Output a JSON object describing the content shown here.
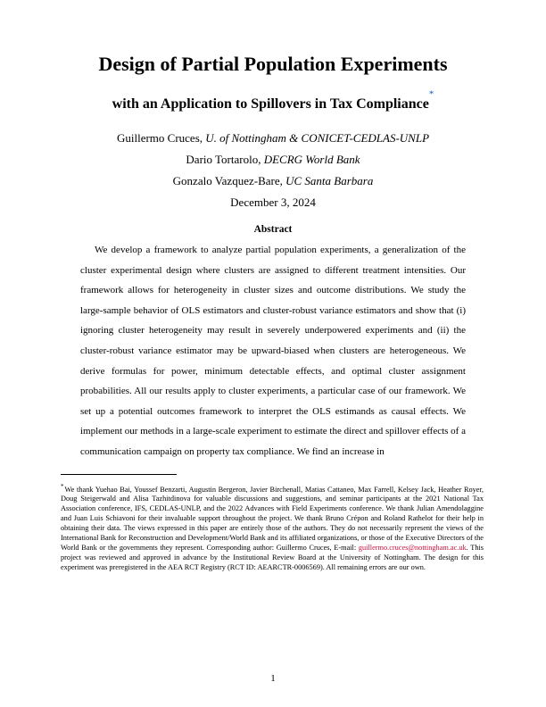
{
  "title": "Design of Partial Population Experiments",
  "subtitle": "with an Application to Spillovers in Tax Compliance",
  "footnote_marker": "*",
  "authors": [
    {
      "name": "Guillermo Cruces",
      "affil": "U. of Nottingham & CONICET-CEDLAS-UNLP"
    },
    {
      "name": "Dario Tortarolo",
      "affil": "DECRG World Bank"
    },
    {
      "name": "Gonzalo Vazquez-Bare",
      "affil": "UC Santa Barbara"
    }
  ],
  "date": "December 3, 2024",
  "abstract_heading": "Abstract",
  "abstract": "We develop a framework to analyze partial population experiments, a generalization of the cluster experimental design where clusters are assigned to different treatment intensities. Our framework allows for heterogeneity in cluster sizes and outcome distributions. We study the large-sample behavior of OLS estimators and cluster-robust variance estimators and show that (i) ignoring cluster heterogeneity may result in severely underpowered experiments and (ii) the cluster-robust variance estimator may be upward-biased when clusters are heterogeneous. We derive formulas for power, minimum detectable effects, and optimal cluster assignment probabilities. All our results apply to cluster experiments, a particular case of our framework. We set up a potential outcomes framework to interpret the OLS estimands as causal effects. We implement our methods in a large-scale experiment to estimate the direct and spillover effects of a communication campaign on property tax compliance. We find an increase in",
  "footnote": {
    "marker": "*",
    "pre_email": "We thank Yuehao Bai, Youssef Benzarti, Augustin Bergeron, Javier Birchenall, Matias Cattaneo, Max Farrell, Kelsey Jack, Heather Royer, Doug Steigerwald and Alisa Tazhitdinova for valuable discussions and suggestions, and seminar participants at the 2021 National Tax Association conference, IFS, CEDLAS-UNLP, and the 2022 Advances with Field Experiments conference. We thank Julian Amendolaggine and Juan Luis Schiavoni for their invaluable support throughout the project. We thank Bruno Crépon and Roland Rathelot for their help in obtaining their data. The views expressed in this paper are entirely those of the authors. They do not necessarily represent the views of the International Bank for Reconstruction and Development/World Bank and its affiliated organizations, or those of the Executive Directors of the World Bank or the governments they represent. Corresponding author: Guillermo Cruces, E-mail: ",
    "email": "guillermo.cruces@nottingham.ac.uk",
    "post_email": ". This project was reviewed and approved in advance by the Institutional Review Board at the University of Nottingham. The design for this experiment was preregistered in the AEA RCT Registry (RCT ID: AEARCTR-0006569). All remaining errors are our own."
  },
  "page_number": "1",
  "colors": {
    "link_blue": "#0b59c4",
    "email_red": "#c8103a"
  }
}
